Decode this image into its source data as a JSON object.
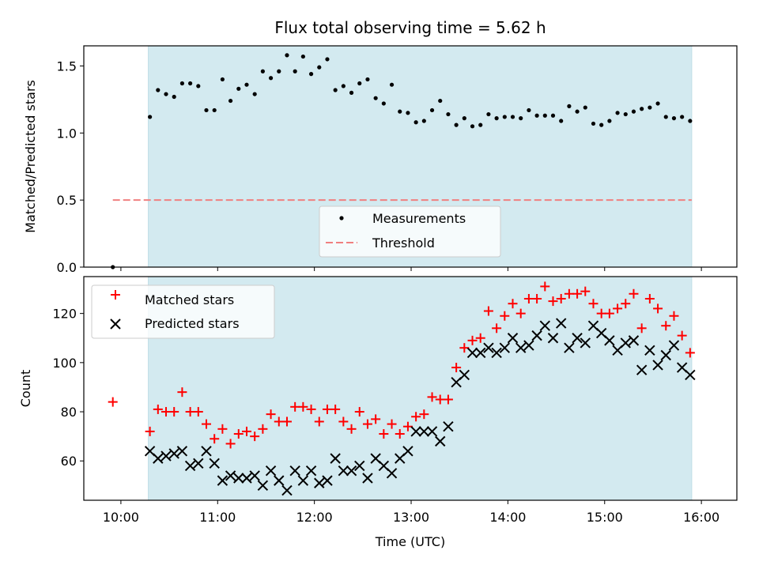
{
  "chart_data": [
    {
      "type": "scatter",
      "title": "Flux total observing time = 5.62 h",
      "ylabel": "Matched/Predicted stars",
      "xlabel": "",
      "ylim": [
        0,
        1.65
      ],
      "yticks": [
        0.0,
        0.5,
        1.0,
        1.5
      ],
      "ytick_labels": [
        "0.0",
        "0.5",
        "1.0",
        "1.5"
      ],
      "grid": false,
      "legend_position": "lower-center",
      "observing_window": {
        "start": "10:17",
        "end": "15:54",
        "color": "#d3eaf0"
      },
      "series": [
        {
          "name": "Measurements",
          "marker": "dot",
          "color": "#000000",
          "x": [
            "09:55",
            "10:18",
            "10:23",
            "10:28",
            "10:33",
            "10:38",
            "10:43",
            "10:48",
            "10:53",
            "10:58",
            "11:03",
            "11:08",
            "11:13",
            "11:18",
            "11:23",
            "11:28",
            "11:33",
            "11:38",
            "11:43",
            "11:48",
            "11:53",
            "11:58",
            "12:03",
            "12:08",
            "12:13",
            "12:18",
            "12:23",
            "12:28",
            "12:33",
            "12:38",
            "12:43",
            "12:48",
            "12:53",
            "12:58",
            "13:03",
            "13:08",
            "13:13",
            "13:18",
            "13:23",
            "13:28",
            "13:33",
            "13:38",
            "13:43",
            "13:48",
            "13:53",
            "13:58",
            "14:03",
            "14:08",
            "14:13",
            "14:18",
            "14:23",
            "14:28",
            "14:33",
            "14:38",
            "14:43",
            "14:48",
            "14:53",
            "14:58",
            "15:03",
            "15:08",
            "15:13",
            "15:18",
            "15:23",
            "15:28",
            "15:33",
            "15:38",
            "15:43",
            "15:48",
            "15:53"
          ],
          "y": [
            0.0,
            1.12,
            1.32,
            1.29,
            1.27,
            1.37,
            1.37,
            1.35,
            1.17,
            1.17,
            1.4,
            1.24,
            1.33,
            1.36,
            1.29,
            1.46,
            1.41,
            1.46,
            1.58,
            1.46,
            1.57,
            1.44,
            1.49,
            1.55,
            1.32,
            1.35,
            1.3,
            1.37,
            1.4,
            1.26,
            1.22,
            1.36,
            1.16,
            1.15,
            1.08,
            1.09,
            1.17,
            1.24,
            1.14,
            1.06,
            1.11,
            1.05,
            1.06,
            1.14,
            1.11,
            1.12,
            1.12,
            1.11,
            1.17,
            1.13,
            1.13,
            1.13,
            1.09,
            1.2,
            1.16,
            1.19,
            1.07,
            1.06,
            1.09,
            1.15,
            1.14,
            1.16,
            1.18,
            1.19,
            1.22,
            1.12,
            1.11,
            1.12,
            1.09
          ]
        },
        {
          "name": "Threshold",
          "marker": "dashed-line",
          "color": "#f08080",
          "x": [
            "09:55",
            "15:54"
          ],
          "y": [
            0.5,
            0.5
          ]
        }
      ]
    },
    {
      "type": "scatter",
      "title": "",
      "ylabel": "Count",
      "xlabel": "Time (UTC)",
      "ylim": [
        44,
        135
      ],
      "yticks": [
        60,
        80,
        100,
        120
      ],
      "ytick_labels": [
        "60",
        "80",
        "100",
        "120"
      ],
      "xticks": [
        "10:00",
        "11:00",
        "12:00",
        "13:00",
        "14:00",
        "15:00",
        "16:00"
      ],
      "xtick_labels": [
        "10:00",
        "11:00",
        "12:00",
        "13:00",
        "14:00",
        "15:00",
        "16:00"
      ],
      "xlim": [
        "09:37",
        "16:22"
      ],
      "grid": false,
      "legend_position": "upper-left",
      "observing_window": {
        "start": "10:17",
        "end": "15:54",
        "color": "#d3eaf0"
      },
      "series": [
        {
          "name": "Matched stars",
          "marker": "plus",
          "color": "#ff0000",
          "x": [
            "09:55",
            "10:18",
            "10:23",
            "10:28",
            "10:33",
            "10:38",
            "10:43",
            "10:48",
            "10:53",
            "10:58",
            "11:03",
            "11:08",
            "11:13",
            "11:18",
            "11:23",
            "11:28",
            "11:33",
            "11:38",
            "11:43",
            "11:48",
            "11:53",
            "11:58",
            "12:03",
            "12:08",
            "12:13",
            "12:18",
            "12:23",
            "12:28",
            "12:33",
            "12:38",
            "12:43",
            "12:48",
            "12:53",
            "12:58",
            "13:03",
            "13:08",
            "13:13",
            "13:18",
            "13:23",
            "13:28",
            "13:33",
            "13:38",
            "13:43",
            "13:48",
            "13:53",
            "13:58",
            "14:03",
            "14:08",
            "14:13",
            "14:18",
            "14:23",
            "14:28",
            "14:33",
            "14:38",
            "14:43",
            "14:48",
            "14:53",
            "14:58",
            "15:03",
            "15:08",
            "15:13",
            "15:18",
            "15:23",
            "15:28",
            "15:33",
            "15:38",
            "15:43",
            "15:48",
            "15:53"
          ],
          "y": [
            84,
            72,
            81,
            80,
            80,
            88,
            80,
            80,
            75,
            69,
            73,
            67,
            71,
            72,
            70,
            73,
            79,
            76,
            76,
            82,
            82,
            81,
            76,
            81,
            81,
            76,
            73,
            80,
            75,
            77,
            71,
            75,
            71,
            74,
            78,
            79,
            86,
            85,
            85,
            98,
            106,
            109,
            110,
            121,
            114,
            119,
            124,
            120,
            126,
            126,
            131,
            125,
            126,
            128,
            128,
            129,
            124,
            120,
            120,
            122,
            124,
            128,
            114,
            126,
            122,
            115,
            119,
            111,
            104
          ]
        },
        {
          "name": "Predicted stars",
          "marker": "x",
          "color": "#000000",
          "x": [
            "09:55",
            "10:18",
            "10:23",
            "10:28",
            "10:33",
            "10:38",
            "10:43",
            "10:48",
            "10:53",
            "10:58",
            "11:03",
            "11:08",
            "11:13",
            "11:18",
            "11:23",
            "11:28",
            "11:33",
            "11:38",
            "11:43",
            "11:48",
            "11:53",
            "11:58",
            "12:03",
            "12:08",
            "12:13",
            "12:18",
            "12:23",
            "12:28",
            "12:33",
            "12:38",
            "12:43",
            "12:48",
            "12:53",
            "12:58",
            "13:03",
            "13:08",
            "13:13",
            "13:18",
            "13:23",
            "13:28",
            "13:33",
            "13:38",
            "13:43",
            "13:48",
            "13:53",
            "13:58",
            "14:03",
            "14:08",
            "14:13",
            "14:18",
            "14:23",
            "14:28",
            "14:33",
            "14:38",
            "14:43",
            "14:48",
            "14:53",
            "14:58",
            "15:03",
            "15:08",
            "15:13",
            "15:18",
            "15:23",
            "15:28",
            "15:33",
            "15:38",
            "15:43",
            "15:48",
            "15:53"
          ],
          "y": [
            null,
            64,
            61,
            62,
            63,
            64,
            58,
            59,
            64,
            59,
            52,
            54,
            53,
            53,
            54,
            50,
            56,
            52,
            48,
            56,
            52,
            56,
            51,
            52,
            61,
            56,
            56,
            58,
            53,
            61,
            58,
            55,
            61,
            64,
            72,
            72,
            72,
            68,
            74,
            92,
            95,
            104,
            104,
            106,
            104,
            106,
            110,
            106,
            107,
            111,
            115,
            110,
            116,
            106,
            110,
            108,
            115,
            112,
            109,
            105,
            108,
            109,
            97,
            105,
            99,
            103,
            107,
            98,
            95
          ]
        }
      ]
    }
  ]
}
